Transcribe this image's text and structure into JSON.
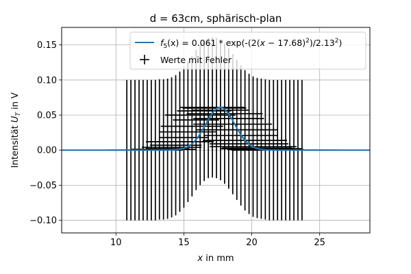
{
  "chart_data": {
    "type": "scatter",
    "title": "d = 63cm, sphärisch-plan",
    "xlabel_var": "x",
    "xlabel_rest": " in mm",
    "ylabel_main": "Intensität ",
    "ylabel_var": "U",
    "ylabel_sub": "T",
    "ylabel_rest": " in V",
    "xlim": [
      6.0,
      28.7
    ],
    "ylim": [
      -0.118,
      0.175
    ],
    "xticks": [
      10,
      15,
      20,
      25
    ],
    "xtick_labels": [
      "10",
      "15",
      "20",
      "25"
    ],
    "yticks": [
      -0.1,
      -0.05,
      0.0,
      0.05,
      0.1,
      0.15
    ],
    "ytick_labels": [
      "−0.10",
      "−0.05",
      "0.00",
      "0.05",
      "0.10",
      "0.15"
    ],
    "grid": true,
    "legend_placement": "top-right",
    "legend": {
      "fit_label": "f5(x) = 0.061 * exp(-(2(x − 17.68)²)/2.13²)",
      "data_label": "Werte mit Fehler"
    },
    "fit": {
      "amplitude": 0.061,
      "mu": 17.68,
      "sigma": 2.13,
      "color": "#1f77b4"
    },
    "data_color": "#000000",
    "series": [
      {
        "name": "Werte mit Fehler",
        "x": [
          10.8,
          11.1,
          11.4,
          11.7,
          12.0,
          12.3,
          12.6,
          12.9,
          13.2,
          13.5,
          13.8,
          14.1,
          14.4,
          14.7,
          15.0,
          15.3,
          15.6,
          15.9,
          16.2,
          16.5,
          16.8,
          17.1,
          17.4,
          17.7,
          18.0,
          18.3,
          18.6,
          18.9,
          19.2,
          19.5,
          19.8,
          20.1,
          20.4,
          20.7,
          21.0,
          21.3,
          21.6,
          21.9,
          22.2,
          22.5,
          22.8,
          23.1,
          23.4,
          23.7
        ],
        "y": [
          0.0,
          0.0,
          0.0,
          0.0,
          0.0,
          0.0,
          0.0,
          0.0,
          0.001,
          0.001,
          0.002,
          0.004,
          0.007,
          0.012,
          0.018,
          0.026,
          0.034,
          0.043,
          0.05,
          0.056,
          0.06,
          0.061,
          0.06,
          0.057,
          0.052,
          0.045,
          0.037,
          0.029,
          0.021,
          0.014,
          0.009,
          0.005,
          0.003,
          0.002,
          0.001,
          0.0,
          0.0,
          0.0,
          0.0,
          0.0,
          0.0,
          0.0,
          0.0,
          0.0
        ],
        "yerr": [
          0.1,
          0.1,
          0.1,
          0.1,
          0.1,
          0.1,
          0.1,
          0.1,
          0.1,
          0.1,
          0.1,
          0.1,
          0.1,
          0.1,
          0.1,
          0.1,
          0.1,
          0.1,
          0.1,
          0.1,
          0.1,
          0.1,
          0.1,
          0.1,
          0.1,
          0.1,
          0.1,
          0.1,
          0.1,
          0.1,
          0.1,
          0.1,
          0.1,
          0.1,
          0.1,
          0.1,
          0.1,
          0.1,
          0.1,
          0.1,
          0.1,
          0.1,
          0.1,
          0.1
        ],
        "xerr": [
          1.4,
          1.9,
          1.6,
          2.1,
          1.8,
          1.5,
          2.3,
          1.7,
          2.0,
          2.4,
          1.6,
          2.2,
          1.9,
          2.5,
          1.8,
          2.1,
          2.3,
          1.7,
          2.6,
          2.0,
          1.9,
          2.4,
          2.2,
          2.1,
          2.8,
          2.6,
          2.9,
          3.0,
          2.7,
          3.1,
          2.9,
          3.2,
          2.6,
          3.0,
          2.8,
          2.7,
          3.1,
          2.9,
          2.8,
          3.0,
          2.7,
          2.6,
          2.9,
          2.7
        ]
      }
    ]
  }
}
